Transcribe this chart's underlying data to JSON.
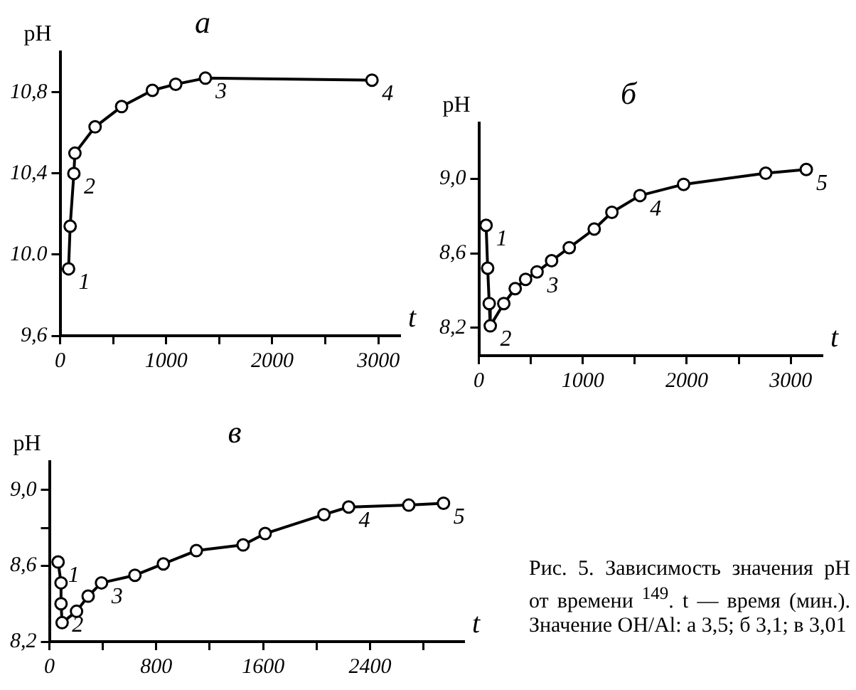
{
  "chart_data": [
    {
      "type": "line",
      "title": "а",
      "xlabel": "t",
      "ylabel": "pH",
      "color": "#000000",
      "marker": "circle",
      "line_style": "solid",
      "grid": false,
      "legend": false,
      "x": [
        80,
        95,
        130,
        140,
        330,
        580,
        870,
        1090,
        1370,
        2940
      ],
      "values": [
        9.93,
        10.14,
        10.4,
        10.5,
        10.63,
        10.73,
        10.81,
        10.84,
        10.87,
        10.86
      ],
      "xlim": [
        0,
        3200
      ],
      "ylim": [
        9.6,
        11.0
      ],
      "xticks": [
        0,
        {
          "value": 500,
          "label": null
        },
        1000,
        {
          "value": 1500,
          "label": null
        },
        2000,
        {
          "value": 2500,
          "label": null
        },
        3000
      ],
      "yticks": [
        {
          "value": 9.6,
          "label": "9,6"
        },
        {
          "value": 10.0,
          "label": "10.0"
        },
        {
          "value": 10.4,
          "label": "10,4"
        },
        {
          "value": 10.8,
          "label": "10,8"
        }
      ],
      "annotations": [
        {
          "text": "1",
          "x": 80,
          "y": 9.93
        },
        {
          "text": "2",
          "x": 130,
          "y": 10.4
        },
        {
          "text": "3",
          "x": 1370,
          "y": 10.87
        },
        {
          "text": "4",
          "x": 2940,
          "y": 10.86
        }
      ]
    },
    {
      "type": "line",
      "title": "б",
      "xlabel": "t",
      "ylabel": "pH",
      "color": "#000000",
      "marker": "circle",
      "line_style": "solid",
      "grid": false,
      "legend": false,
      "x": [
        70,
        85,
        100,
        110,
        240,
        350,
        450,
        560,
        700,
        870,
        1110,
        1280,
        1550,
        1970,
        2760,
        3150
      ],
      "values": [
        8.75,
        8.52,
        8.33,
        8.21,
        8.33,
        8.41,
        8.46,
        8.5,
        8.56,
        8.63,
        8.73,
        8.82,
        8.91,
        8.97,
        9.03,
        9.05
      ],
      "xlim": [
        0,
        3300
      ],
      "ylim": [
        8.05,
        9.3
      ],
      "xticks": [
        0,
        {
          "value": 500,
          "label": null
        },
        1000,
        {
          "value": 1500,
          "label": null
        },
        2000,
        {
          "value": 2500,
          "label": null
        },
        3000
      ],
      "yticks": [
        {
          "value": 8.2,
          "label": "8,2"
        },
        {
          "value": 8.6,
          "label": "8,6"
        },
        {
          "value": 9.0,
          "label": "9,0"
        }
      ],
      "annotations": [
        {
          "text": "1",
          "x": 70,
          "y": 8.75
        },
        {
          "text": "2",
          "x": 110,
          "y": 8.21
        },
        {
          "text": "3",
          "x": 560,
          "y": 8.5
        },
        {
          "text": "4",
          "x": 1550,
          "y": 8.91
        },
        {
          "text": "5",
          "x": 3150,
          "y": 9.05
        }
      ]
    },
    {
      "type": "line",
      "title": "в",
      "xlabel": "t",
      "ylabel": "pH",
      "color": "#000000",
      "marker": "circle",
      "line_style": "solid",
      "grid": false,
      "legend": false,
      "x": [
        65,
        87,
        87,
        95,
        203,
        290,
        390,
        640,
        853,
        1100,
        1450,
        1615,
        2055,
        2240,
        2690,
        2950
      ],
      "values": [
        8.62,
        8.51,
        8.4,
        8.3,
        8.36,
        8.44,
        8.51,
        8.55,
        8.61,
        8.68,
        8.71,
        8.77,
        8.87,
        8.91,
        8.92,
        8.93
      ],
      "xlim": [
        0,
        3100
      ],
      "ylim": [
        8.2,
        9.15
      ],
      "xticks": [
        0,
        {
          "value": 400,
          "label": null
        },
        800,
        {
          "value": 1200,
          "label": null
        },
        1600,
        {
          "value": 2000,
          "label": null
        },
        2400,
        {
          "value": 2800,
          "label": null
        }
      ],
      "yticks": [
        {
          "value": 8.2,
          "label": "8,2"
        },
        {
          "value": 8.6,
          "label": "8,6"
        },
        {
          "value": 8.8,
          "label": null
        },
        {
          "value": 9.0,
          "label": "9,0"
        }
      ],
      "annotations": [
        {
          "text": "1",
          "x": 65,
          "y": 8.62
        },
        {
          "text": "2",
          "x": 95,
          "y": 8.3
        },
        {
          "text": "3",
          "x": 390,
          "y": 8.51
        },
        {
          "text": "4",
          "x": 2240,
          "y": 8.91
        },
        {
          "text": "5",
          "x": 2950,
          "y": 8.93
        },
        "Рис. 5. Зависимость значения pH от времени $^{149}$. t — время (мин.). Значение OH/Al: а 3,5; б 3,1; в 3,01"
      ]
    }
  ]
}
